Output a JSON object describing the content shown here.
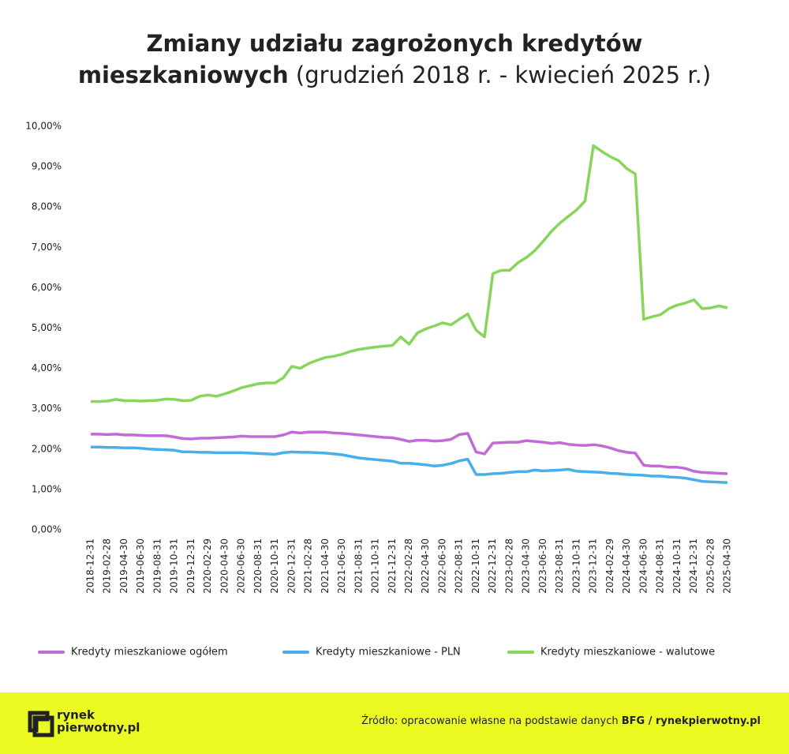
{
  "chart_data": {
    "type": "line",
    "title": [
      "Zmiany udziału zagrożonych kredytów",
      "mieszkaniowych"
    ],
    "subtitle": "(grudzień 2018 r. - kwiecień 2025 r.)",
    "categories": [
      "2018-12-31",
      null,
      "2019-02-28",
      null,
      "2019-04-30",
      null,
      "2019-06-30",
      null,
      "2019-08-31",
      null,
      "2019-10-31",
      null,
      "2019-12-31",
      null,
      "2020-02-29",
      null,
      "2020-04-30",
      null,
      "2020-06-30",
      null,
      "2020-08-31",
      null,
      "2020-10-31",
      null,
      "2020-12-31",
      null,
      "2021-02-28",
      null,
      "2021-04-30",
      null,
      "2021-06-30",
      null,
      "2021-08-31",
      null,
      "2021-10-31",
      null,
      "2021-12-31",
      null,
      "2022-02-28",
      null,
      "2022-04-30",
      null,
      "2022-06-30",
      null,
      "2022-08-31",
      null,
      "2022-10-31",
      null,
      "2022-12-31",
      null,
      "2023-02-28",
      null,
      "2023-04-30",
      null,
      "2023-06-30",
      null,
      "2023-08-31",
      null,
      "2023-10-31",
      null,
      "2023-12-31",
      null,
      "2024-02-29",
      null,
      "2024-04-30",
      null,
      "2024-06-30",
      null,
      "2024-08-31",
      null,
      "2024-10-31",
      null,
      "2024-12-31",
      null,
      "2025-02-28",
      null,
      "2025-04-30"
    ],
    "series": [
      {
        "name": "Kredyty mieszkaniowe ogółem",
        "color": "#c26bd8",
        "values": [
          2.37,
          2.37,
          2.36,
          2.37,
          2.35,
          2.35,
          2.34,
          2.33,
          2.33,
          2.33,
          2.3,
          2.26,
          2.25,
          2.27,
          2.27,
          2.28,
          2.29,
          2.3,
          2.32,
          2.31,
          2.31,
          2.31,
          2.31,
          2.35,
          2.42,
          2.4,
          2.42,
          2.42,
          2.42,
          2.4,
          2.39,
          2.37,
          2.35,
          2.33,
          2.31,
          2.29,
          2.28,
          2.24,
          2.19,
          2.22,
          2.22,
          2.2,
          2.21,
          2.24,
          2.36,
          2.39,
          1.93,
          1.88,
          2.15,
          2.16,
          2.17,
          2.17,
          2.21,
          2.19,
          2.17,
          2.14,
          2.16,
          2.12,
          2.1,
          2.09,
          2.11,
          2.08,
          2.03,
          1.96,
          1.92,
          1.9,
          1.6,
          1.58,
          1.58,
          1.55,
          1.55,
          1.52,
          1.45,
          1.42,
          1.41,
          1.4,
          1.39
        ]
      },
      {
        "name": "Kredyty mieszkaniowe - PLN",
        "color": "#4aaeea",
        "values": [
          2.05,
          2.05,
          2.04,
          2.04,
          2.03,
          2.03,
          2.02,
          2.0,
          1.99,
          1.98,
          1.97,
          1.93,
          1.93,
          1.92,
          1.92,
          1.91,
          1.91,
          1.91,
          1.91,
          1.9,
          1.89,
          1.88,
          1.87,
          1.91,
          1.93,
          1.92,
          1.92,
          1.91,
          1.9,
          1.88,
          1.86,
          1.82,
          1.78,
          1.76,
          1.74,
          1.72,
          1.7,
          1.65,
          1.65,
          1.63,
          1.61,
          1.58,
          1.6,
          1.64,
          1.71,
          1.75,
          1.37,
          1.37,
          1.39,
          1.4,
          1.42,
          1.44,
          1.44,
          1.48,
          1.46,
          1.47,
          1.48,
          1.5,
          1.45,
          1.44,
          1.43,
          1.42,
          1.4,
          1.39,
          1.37,
          1.36,
          1.35,
          1.33,
          1.33,
          1.31,
          1.3,
          1.28,
          1.24,
          1.2,
          1.19,
          1.18,
          1.17
        ]
      },
      {
        "name": "Kredyty mieszkaniowe - walutowe",
        "color": "#88d55c",
        "values": [
          3.18,
          3.18,
          3.19,
          3.23,
          3.2,
          3.2,
          3.19,
          3.2,
          3.21,
          3.24,
          3.23,
          3.2,
          3.21,
          3.31,
          3.34,
          3.31,
          3.37,
          3.44,
          3.52,
          3.57,
          3.62,
          3.64,
          3.64,
          3.77,
          4.05,
          4.0,
          4.12,
          4.2,
          4.27,
          4.3,
          4.35,
          4.42,
          4.47,
          4.5,
          4.53,
          4.55,
          4.57,
          4.78,
          4.6,
          4.88,
          4.98,
          5.05,
          5.13,
          5.08,
          5.22,
          5.35,
          4.95,
          4.78,
          6.35,
          6.43,
          6.43,
          6.62,
          6.75,
          6.92,
          7.15,
          7.4,
          7.6,
          7.77,
          7.93,
          8.15,
          9.52,
          9.38,
          9.25,
          9.15,
          8.95,
          8.82,
          5.22,
          5.28,
          5.33,
          5.48,
          5.57,
          5.62,
          5.7,
          5.48,
          5.5,
          5.55,
          5.5
        ]
      }
    ],
    "ylim": [
      0,
      10
    ],
    "yticks": [
      {
        "value": 0,
        "label": "0,00%"
      },
      {
        "value": 1,
        "label": "1,00%"
      },
      {
        "value": 2,
        "label": "2,00%"
      },
      {
        "value": 3,
        "label": "3,00%"
      },
      {
        "value": 4,
        "label": "4,00%"
      },
      {
        "value": 5,
        "label": "5,00%"
      },
      {
        "value": 6,
        "label": "6,00%"
      },
      {
        "value": 7,
        "label": "7,00%"
      },
      {
        "value": 8,
        "label": "8,00%"
      },
      {
        "value": 9,
        "label": "9,00%"
      },
      {
        "value": 10,
        "label": "10,00%"
      }
    ],
    "grid": false,
    "legend": "bottom"
  },
  "footer": {
    "logo": [
      "rynek",
      "pierwotny.pl"
    ],
    "source": "Źródło: opracowanie własne na podstawie danych",
    "source_bold": "BFG / rynekpierwotny.pl"
  }
}
